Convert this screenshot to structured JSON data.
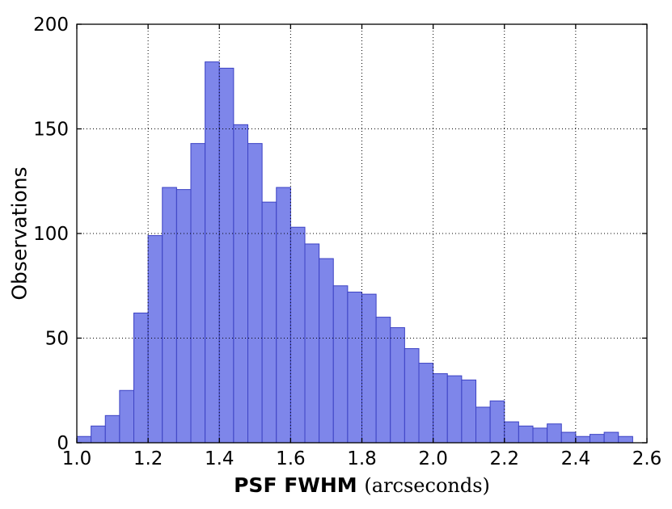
{
  "figure": {
    "ylabel": "Observations",
    "xlabel_main": "PSF FWHM ",
    "xlabel_unit": "(arcseconds)"
  },
  "chart_data": {
    "type": "bar",
    "chart_kind": "histogram",
    "title": "",
    "xlabel": "PSF FWHM (arcseconds)",
    "ylabel": "Observations",
    "xlim": [
      1.0,
      2.6
    ],
    "ylim": [
      0,
      200
    ],
    "bin_start": 1.0,
    "bin_width": 0.04,
    "counts": [
      3,
      8,
      13,
      25,
      62,
      99,
      122,
      121,
      143,
      182,
      179,
      152,
      143,
      115,
      122,
      103,
      95,
      88,
      75,
      72,
      71,
      60,
      55,
      45,
      38,
      33,
      32,
      30,
      17,
      20,
      10,
      8,
      7,
      9,
      5,
      3,
      4,
      5,
      3
    ],
    "x_ticks": [
      {
        "value": 1.0,
        "label": "1.0"
      },
      {
        "value": 1.2,
        "label": "1.2"
      },
      {
        "value": 1.4,
        "label": "1.4"
      },
      {
        "value": 1.6,
        "label": "1.6"
      },
      {
        "value": 1.8,
        "label": "1.8"
      },
      {
        "value": 2.0,
        "label": "2.0"
      },
      {
        "value": 2.2,
        "label": "2.2"
      },
      {
        "value": 2.4,
        "label": "2.4"
      },
      {
        "value": 2.6,
        "label": "2.6"
      }
    ],
    "y_ticks": [
      {
        "value": 0,
        "label": "0"
      },
      {
        "value": 50,
        "label": "50"
      },
      {
        "value": 100,
        "label": "100"
      },
      {
        "value": 150,
        "label": "150"
      },
      {
        "value": 200,
        "label": "200"
      }
    ],
    "grid": {
      "style": "dotted",
      "color": "#000000"
    },
    "legend": "none",
    "bar_fill": "#7e86ea",
    "bar_edge": "#3c42c4",
    "frame_color": "#000000",
    "background": "#ffffff"
  }
}
